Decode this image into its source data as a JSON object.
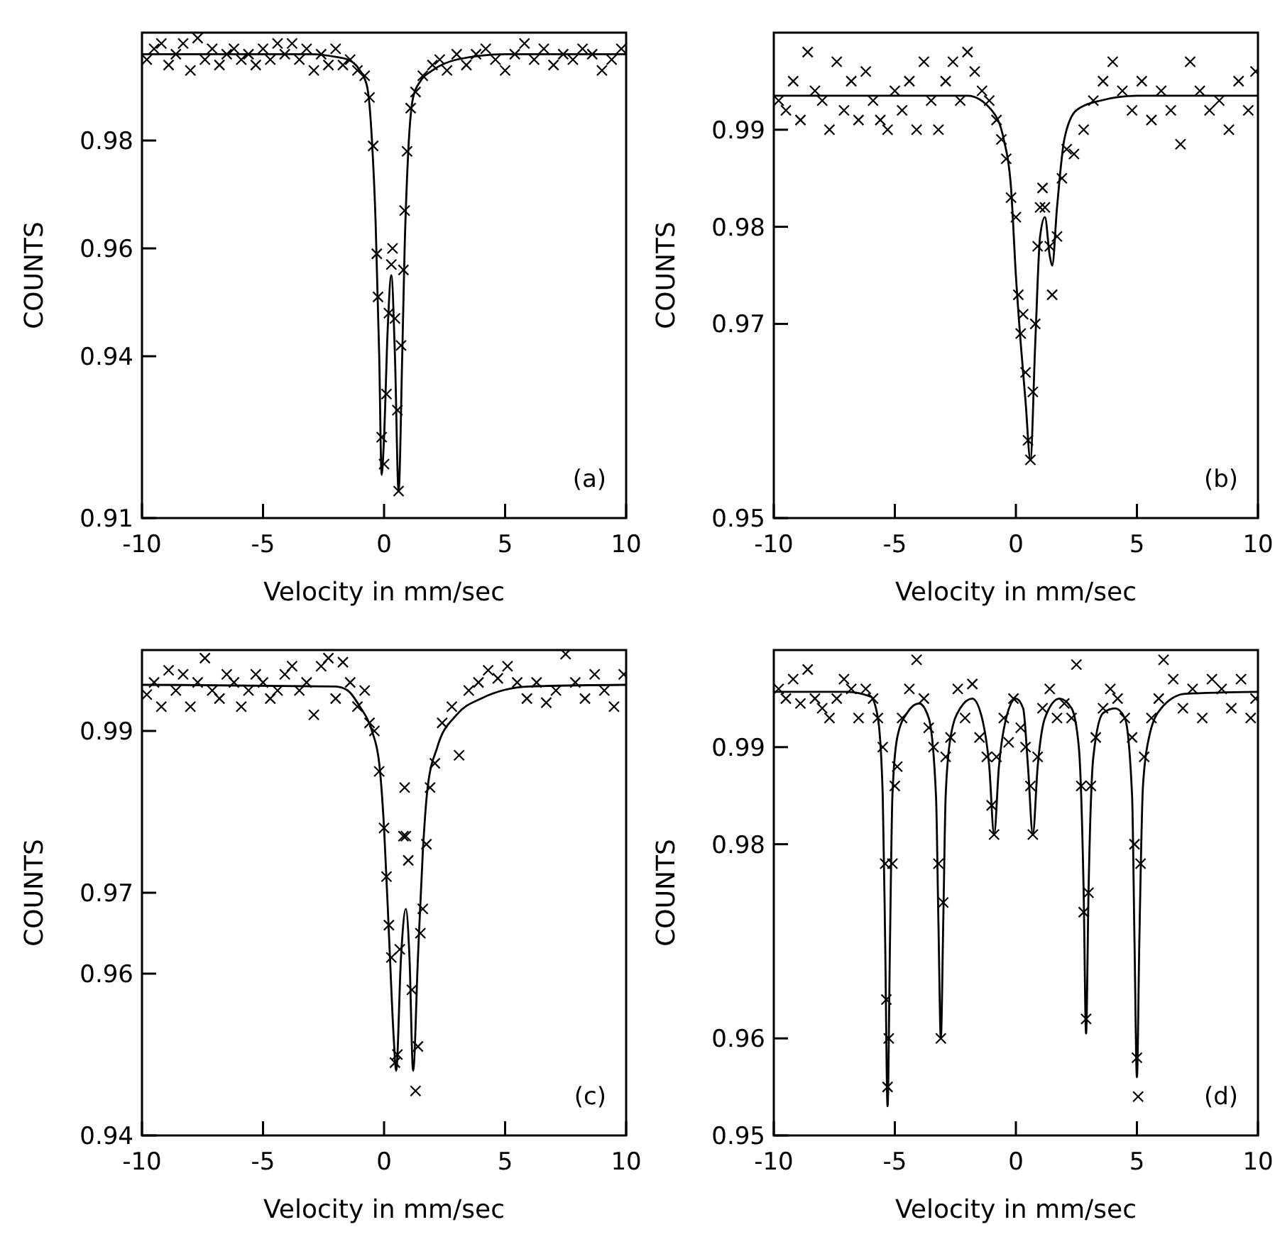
{
  "chart_data": [
    {
      "type": "scatter",
      "xlabel": "Velocity in mm/sec",
      "ylabel": "COUNTS",
      "annotations": [
        "(a)"
      ],
      "xlim": [
        -10,
        10
      ],
      "xticks": [
        -10,
        -5,
        0,
        5,
        10
      ],
      "ylim": [
        0.91,
        1.0
      ],
      "yticks": [
        0.91,
        0.94,
        0.96,
        0.98
      ],
      "series": [
        {
          "color": "#000000",
          "marker": "cross",
          "x": [
            -9.8,
            -9.5,
            -9.2,
            -8.9,
            -8.6,
            -8.3,
            -8,
            -7.7,
            -7.4,
            -7.1,
            -6.8,
            -6.5,
            -6.2,
            -5.9,
            -5.6,
            -5.3,
            -5,
            -4.7,
            -4.4,
            -4.1,
            -3.8,
            -3.5,
            -3.2,
            -2.9,
            -2.6,
            -2.3,
            -2,
            -1.7,
            -1.4,
            -1.1,
            -0.8,
            -0.6,
            -0.45,
            -0.3,
            -0.25,
            -0.1,
            0,
            0.1,
            0.2,
            0.3,
            0.35,
            0.45,
            0.55,
            0.6,
            0.7,
            0.8,
            0.85,
            0.95,
            1.1,
            1.3,
            1.6,
            2,
            2.3,
            2.6,
            3,
            3.4,
            3.8,
            4.2,
            4.6,
            5,
            5.4,
            5.8,
            6.2,
            6.6,
            7,
            7.4,
            7.8,
            8.2,
            8.6,
            9,
            9.4,
            9.8
          ],
          "values": [
            0.995,
            0.997,
            0.998,
            0.994,
            0.996,
            0.998,
            0.993,
            0.999,
            0.995,
            0.997,
            0.994,
            0.996,
            0.997,
            0.995,
            0.996,
            0.994,
            0.997,
            0.995,
            0.998,
            0.996,
            0.998,
            0.995,
            0.997,
            0.993,
            0.996,
            0.994,
            0.997,
            0.994,
            0.995,
            0.993,
            0.992,
            0.988,
            0.979,
            0.959,
            0.951,
            0.925,
            0.92,
            0.933,
            0.948,
            0.957,
            0.96,
            0.947,
            0.93,
            0.915,
            0.942,
            0.956,
            0.967,
            0.978,
            0.986,
            0.989,
            0.992,
            0.994,
            0.995,
            0.993,
            0.996,
            0.994,
            0.996,
            0.997,
            0.995,
            0.993,
            0.996,
            0.998,
            0.995,
            0.997,
            0.994,
            0.996,
            0.995,
            0.997,
            0.996,
            0.993,
            0.995,
            0.997
          ]
        },
        {
          "type": "line",
          "color": "#000000",
          "x": [
            -10,
            -3,
            -2,
            -1.5,
            -1,
            -0.7,
            -0.5,
            -0.35,
            -0.2,
            -0.1,
            0,
            0.15,
            0.3,
            0.45,
            0.6,
            0.75,
            0.85,
            1,
            1.2,
            1.5,
            2,
            3,
            5,
            10
          ],
          "values": [
            0.996,
            0.996,
            0.9955,
            0.995,
            0.993,
            0.99,
            0.98,
            0.965,
            0.94,
            0.918,
            0.925,
            0.945,
            0.955,
            0.94,
            0.915,
            0.94,
            0.96,
            0.978,
            0.988,
            0.991,
            0.993,
            0.995,
            0.996,
            0.996
          ]
        }
      ]
    },
    {
      "type": "scatter",
      "xlabel": "Velocity in mm/sec",
      "ylabel": "COUNTS",
      "annotations": [
        "(b)"
      ],
      "xlim": [
        -10,
        10
      ],
      "xticks": [
        -10,
        -5,
        0,
        5,
        10
      ],
      "ylim": [
        0.95,
        1.0
      ],
      "yticks": [
        0.95,
        0.97,
        0.98,
        0.99
      ],
      "series": [
        {
          "color": "#000000",
          "marker": "cross",
          "x": [
            -9.8,
            -9.5,
            -9.2,
            -8.9,
            -8.6,
            -8.3,
            -8,
            -7.7,
            -7.4,
            -7.1,
            -6.8,
            -6.5,
            -6.2,
            -5.9,
            -5.6,
            -5.3,
            -5,
            -4.7,
            -4.4,
            -4.1,
            -3.8,
            -3.5,
            -3.2,
            -2.9,
            -2.6,
            -2.3,
            -2,
            -1.7,
            -1.4,
            -1.1,
            -0.8,
            -0.6,
            -0.4,
            -0.2,
            0,
            0.1,
            0.2,
            0.3,
            0.4,
            0.5,
            0.6,
            0.7,
            0.8,
            0.9,
            1,
            1.1,
            1.2,
            1.4,
            1.5,
            1.7,
            1.9,
            2.1,
            2.4,
            2.8,
            3.2,
            3.6,
            4,
            4.4,
            4.8,
            5.2,
            5.6,
            6,
            6.4,
            6.8,
            7.2,
            7.6,
            8,
            8.4,
            8.8,
            9.2,
            9.6,
            9.9
          ],
          "values": [
            0.993,
            0.992,
            0.995,
            0.991,
            0.998,
            0.994,
            0.993,
            0.99,
            0.997,
            0.992,
            0.995,
            0.991,
            0.996,
            0.993,
            0.991,
            0.99,
            0.994,
            0.992,
            0.995,
            0.99,
            0.997,
            0.993,
            0.99,
            0.995,
            0.997,
            0.993,
            0.998,
            0.996,
            0.994,
            0.993,
            0.991,
            0.989,
            0.987,
            0.983,
            0.981,
            0.973,
            0.969,
            0.971,
            0.965,
            0.958,
            0.956,
            0.963,
            0.97,
            0.978,
            0.982,
            0.984,
            0.982,
            0.978,
            0.973,
            0.979,
            0.985,
            0.988,
            0.9875,
            0.99,
            0.993,
            0.995,
            0.997,
            0.994,
            0.992,
            0.995,
            0.991,
            0.994,
            0.992,
            0.9885,
            0.997,
            0.994,
            0.992,
            0.993,
            0.99,
            0.995,
            0.992,
            0.996
          ]
        },
        {
          "type": "line",
          "color": "#000000",
          "x": [
            -10,
            -2,
            -1,
            -0.5,
            -0.2,
            0,
            0.2,
            0.4,
            0.6,
            0.8,
            1,
            1.2,
            1.4,
            1.5,
            1.7,
            2,
            2.5,
            3.5,
            5,
            10
          ],
          "values": [
            0.9935,
            0.9935,
            0.992,
            0.989,
            0.984,
            0.975,
            0.968,
            0.962,
            0.956,
            0.968,
            0.979,
            0.981,
            0.977,
            0.976,
            0.982,
            0.989,
            0.992,
            0.993,
            0.9935,
            0.9935
          ]
        }
      ]
    },
    {
      "type": "scatter",
      "xlabel": "Velocity in mm/sec",
      "ylabel": "COUNTS",
      "annotations": [
        "(c)"
      ],
      "xlim": [
        -10,
        10
      ],
      "xticks": [
        -10,
        -5,
        0,
        5,
        10
      ],
      "ylim": [
        0.94,
        1.0
      ],
      "yticks": [
        0.94,
        0.96,
        0.97,
        0.99
      ],
      "series": [
        {
          "color": "#000000",
          "marker": "cross",
          "x": [
            -9.8,
            -9.5,
            -9.2,
            -8.9,
            -8.6,
            -8.3,
            -8,
            -7.7,
            -7.4,
            -7.1,
            -6.8,
            -6.5,
            -6.2,
            -5.9,
            -5.6,
            -5.3,
            -5,
            -4.7,
            -4.4,
            -4.1,
            -3.8,
            -3.5,
            -3.2,
            -2.9,
            -2.6,
            -2.3,
            -2,
            -1.7,
            -1.4,
            -1.1,
            -0.8,
            -0.6,
            -0.4,
            -0.2,
            0,
            0.1,
            0.2,
            0.3,
            0.45,
            0.55,
            0.65,
            0.8,
            0.85,
            0.9,
            1,
            1.15,
            1.3,
            1.4,
            1.5,
            1.6,
            1.75,
            1.9,
            2.1,
            2.4,
            2.8,
            3.1,
            3.5,
            3.9,
            4.3,
            4.7,
            5.1,
            5.5,
            5.9,
            6.3,
            6.7,
            7.1,
            7.5,
            7.9,
            8.3,
            8.7,
            9.1,
            9.5,
            9.9
          ],
          "values": [
            0.9945,
            0.996,
            0.993,
            0.9975,
            0.995,
            0.997,
            0.993,
            0.996,
            0.999,
            0.995,
            0.994,
            0.997,
            0.996,
            0.993,
            0.995,
            0.997,
            0.996,
            0.994,
            0.995,
            0.997,
            0.998,
            0.995,
            0.996,
            0.992,
            0.998,
            0.999,
            0.994,
            0.9985,
            0.996,
            0.993,
            0.995,
            0.991,
            0.99,
            0.985,
            0.978,
            0.972,
            0.966,
            0.962,
            0.949,
            0.95,
            0.963,
            0.977,
            0.983,
            0.977,
            0.974,
            0.958,
            0.9455,
            0.951,
            0.965,
            0.968,
            0.976,
            0.983,
            0.986,
            0.991,
            0.993,
            0.987,
            0.995,
            0.996,
            0.9975,
            0.9965,
            0.998,
            0.996,
            0.994,
            0.996,
            0.9935,
            0.995,
            0.9995,
            0.996,
            0.994,
            0.997,
            0.995,
            0.993,
            0.997
          ]
        },
        {
          "type": "line",
          "color": "#000000",
          "x": [
            -10,
            -2,
            -1.5,
            -1,
            -0.5,
            -0.2,
            0,
            0.2,
            0.4,
            0.5,
            0.7,
            0.9,
            1.05,
            1.2,
            1.4,
            1.6,
            1.8,
            2.2,
            3,
            4,
            6,
            10
          ],
          "values": [
            0.9957,
            0.9955,
            0.995,
            0.993,
            0.99,
            0.986,
            0.978,
            0.965,
            0.952,
            0.948,
            0.962,
            0.968,
            0.962,
            0.948,
            0.962,
            0.975,
            0.983,
            0.988,
            0.992,
            0.994,
            0.9955,
            0.9957
          ]
        }
      ]
    },
    {
      "type": "scatter",
      "xlabel": "Velocity in mm/sec",
      "ylabel": "COUNTS",
      "annotations": [
        "(d)"
      ],
      "xlim": [
        -10,
        10
      ],
      "xticks": [
        -10,
        -5,
        0,
        5,
        10
      ],
      "ylim": [
        0.95,
        1.0
      ],
      "yticks": [
        0.95,
        0.96,
        0.98,
        0.99
      ],
      "series": [
        {
          "color": "#000000",
          "marker": "cross",
          "x": [
            -9.8,
            -9.5,
            -9.2,
            -8.9,
            -8.6,
            -8.3,
            -8,
            -7.7,
            -7.4,
            -7.1,
            -6.8,
            -6.5,
            -6.2,
            -5.9,
            -5.7,
            -5.5,
            -5.4,
            -5.35,
            -5.3,
            -5.25,
            -5.1,
            -5,
            -4.9,
            -4.7,
            -4.4,
            -4.1,
            -3.8,
            -3.6,
            -3.4,
            -3.2,
            -3.1,
            -3,
            -2.9,
            -2.7,
            -2.4,
            -2.1,
            -1.8,
            -1.5,
            -1.2,
            -1,
            -0.9,
            -0.8,
            -0.5,
            -0.3,
            -0.1,
            0.2,
            0.4,
            0.6,
            0.7,
            0.9,
            1.1,
            1.4,
            1.7,
            2,
            2.3,
            2.5,
            2.7,
            2.8,
            2.9,
            3,
            3.1,
            3.3,
            3.6,
            3.9,
            4.2,
            4.5,
            4.8,
            4.9,
            5,
            5.05,
            5.15,
            5.3,
            5.6,
            5.9,
            6.1,
            6.5,
            6.9,
            7.3,
            7.7,
            8.1,
            8.5,
            8.9,
            9.3,
            9.7,
            9.9
          ],
          "values": [
            0.996,
            0.995,
            0.997,
            0.9945,
            0.998,
            0.995,
            0.994,
            0.993,
            0.995,
            0.997,
            0.996,
            0.993,
            0.996,
            0.995,
            0.993,
            0.99,
            0.978,
            0.964,
            0.955,
            0.96,
            0.978,
            0.986,
            0.988,
            0.993,
            0.996,
            0.999,
            0.995,
            0.992,
            0.99,
            0.978,
            0.96,
            0.974,
            0.989,
            0.991,
            0.996,
            0.993,
            0.9965,
            0.991,
            0.989,
            0.984,
            0.981,
            0.989,
            0.993,
            0.9905,
            0.995,
            0.992,
            0.99,
            0.986,
            0.981,
            0.989,
            0.994,
            0.996,
            0.993,
            0.9945,
            0.993,
            0.9985,
            0.986,
            0.973,
            0.962,
            0.975,
            0.986,
            0.991,
            0.994,
            0.996,
            0.995,
            0.993,
            0.991,
            0.98,
            0.958,
            0.954,
            0.978,
            0.989,
            0.993,
            0.995,
            0.999,
            0.997,
            0.994,
            0.996,
            0.993,
            0.997,
            0.996,
            0.994,
            0.997,
            0.993,
            0.995
          ]
        },
        {
          "type": "line",
          "color": "#000000",
          "x": [
            -10,
            -7,
            -6,
            -5.7,
            -5.5,
            -5.4,
            -5.3,
            -5.2,
            -5.1,
            -4.9,
            -4.5,
            -4,
            -3.6,
            -3.3,
            -3.2,
            -3.1,
            -3,
            -2.9,
            -2.7,
            -2.3,
            -1.8,
            -1.4,
            -1.1,
            -0.9,
            -0.7,
            -0.4,
            0,
            0.3,
            0.5,
            0.7,
            0.9,
            1.2,
            1.8,
            2.3,
            2.6,
            2.8,
            2.9,
            3,
            3.2,
            3.6,
            4.1,
            4.5,
            4.8,
            4.9,
            5,
            5.1,
            5.25,
            5.5,
            6,
            7,
            10
          ],
          "values": [
            0.9957,
            0.9957,
            0.9952,
            0.993,
            0.985,
            0.97,
            0.953,
            0.97,
            0.985,
            0.991,
            0.9935,
            0.9945,
            0.993,
            0.985,
            0.972,
            0.96,
            0.972,
            0.985,
            0.991,
            0.994,
            0.995,
            0.993,
            0.988,
            0.981,
            0.988,
            0.993,
            0.995,
            0.994,
            0.988,
            0.981,
            0.988,
            0.993,
            0.995,
            0.994,
            0.99,
            0.975,
            0.9605,
            0.975,
            0.989,
            0.9935,
            0.994,
            0.993,
            0.985,
            0.97,
            0.956,
            0.97,
            0.986,
            0.991,
            0.994,
            0.9955,
            0.9957
          ]
        }
      ]
    }
  ]
}
